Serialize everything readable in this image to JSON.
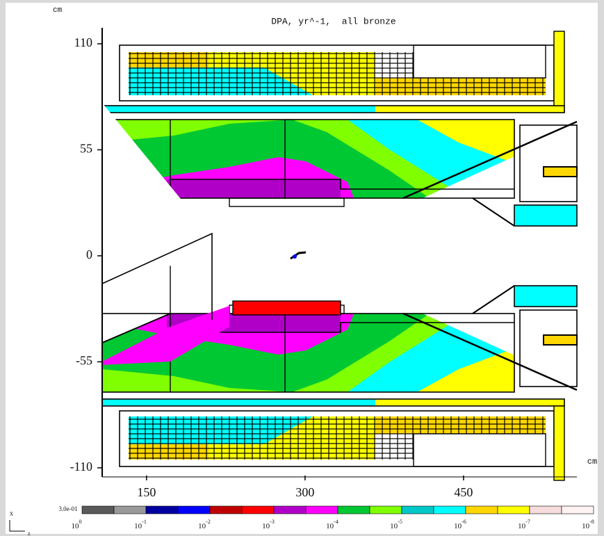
{
  "chart_data": {
    "type": "heatmap",
    "title": "DPA, yr^-1,  all bronze",
    "y_unit": "cm",
    "x_unit": "cm",
    "xlim": [
      108,
      557
    ],
    "ylim": [
      -114,
      117
    ],
    "xticks": [
      150,
      300,
      450
    ],
    "yticks": [
      110,
      55,
      0,
      -55,
      -110
    ],
    "colorbar": {
      "max_label": "3.0e-01",
      "colors": [
        "#5a5a5a",
        "#9a9a9a",
        "#0000a0",
        "#0000ff",
        "#c00000",
        "#ff0000",
        "#b000c8",
        "#ff00ff",
        "#00c832",
        "#80ff00",
        "#00c8c8",
        "#00ffff",
        "#ffd700",
        "#ffff00",
        "#f6dcdc",
        "#fff2f2"
      ],
      "ticks": [
        {
          "base": "10",
          "exp": "0"
        },
        {
          "base": "10",
          "exp": "-1"
        },
        {
          "base": "10",
          "exp": "-2"
        },
        {
          "base": "10",
          "exp": "-3"
        },
        {
          "base": "10",
          "exp": "-4"
        },
        {
          "base": "10",
          "exp": "-5"
        },
        {
          "base": "10",
          "exp": "-6"
        },
        {
          "base": "10",
          "exp": "-7"
        },
        {
          "base": "10",
          "exp": "-8"
        }
      ]
    },
    "axes_indicator": [
      "x",
      "z"
    ]
  }
}
